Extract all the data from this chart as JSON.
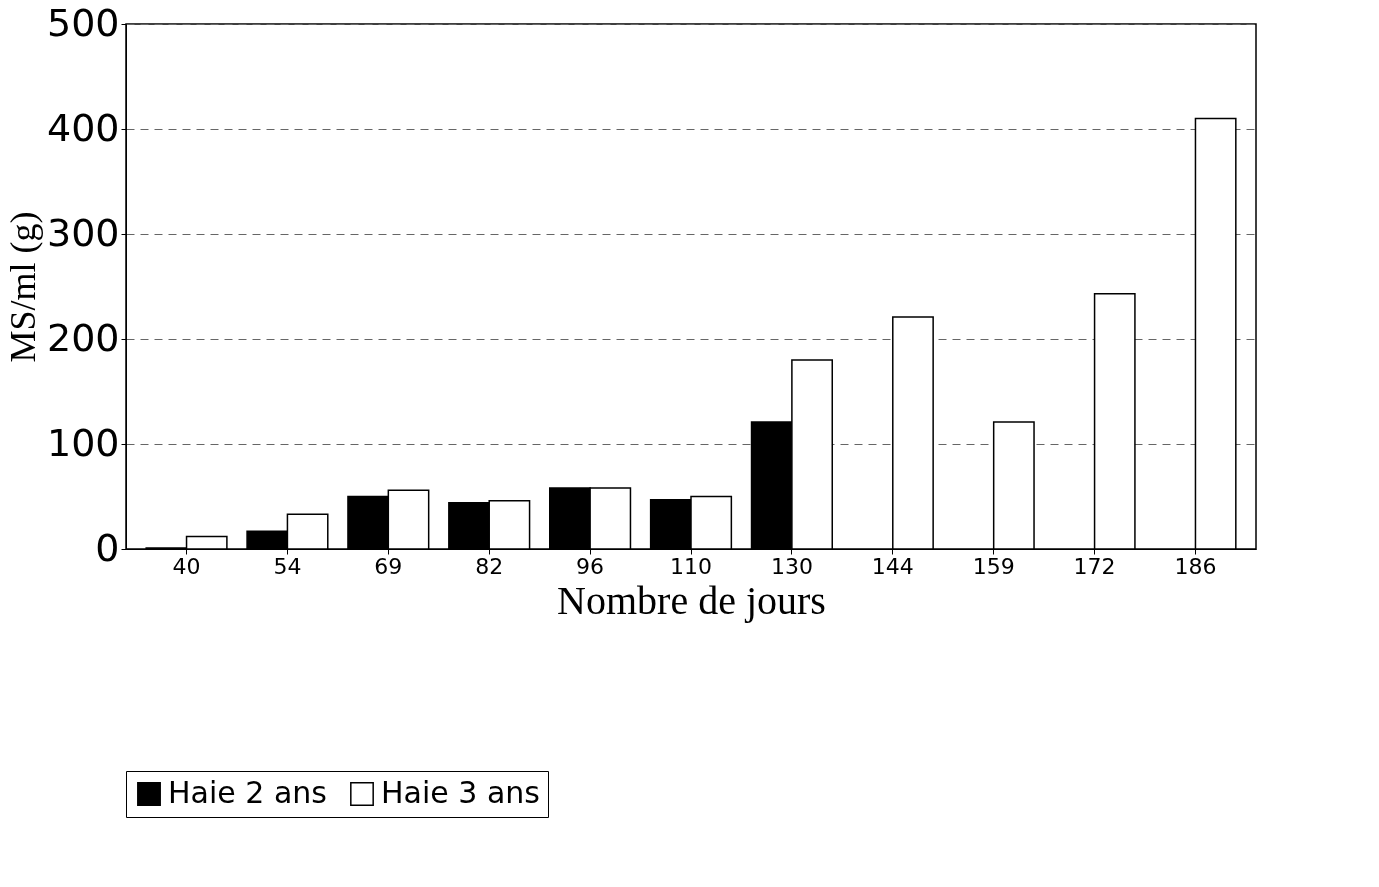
{
  "chart_data": {
    "type": "bar",
    "xlabel": "Nombre de jours",
    "ylabel": "MS/ml (g)",
    "categories": [
      "40",
      "54",
      "69",
      "82",
      "96",
      "110",
      "130",
      "144",
      "159",
      "172",
      "186"
    ],
    "series": [
      {
        "name": "Haie  2 ans",
        "color": "#000000",
        "values": [
          1,
          17,
          50,
          44,
          58,
          47,
          121,
          null,
          null,
          null,
          null
        ]
      },
      {
        "name": "Haie 3 ans",
        "color": "#ffffff",
        "values": [
          12,
          33,
          56,
          46,
          58,
          50,
          180,
          221,
          121,
          243,
          410
        ]
      }
    ],
    "ylim": [
      0,
      500
    ],
    "yticks": [
      0,
      100,
      200,
      300,
      400,
      500
    ],
    "grid": "y",
    "legend": "bottom"
  }
}
